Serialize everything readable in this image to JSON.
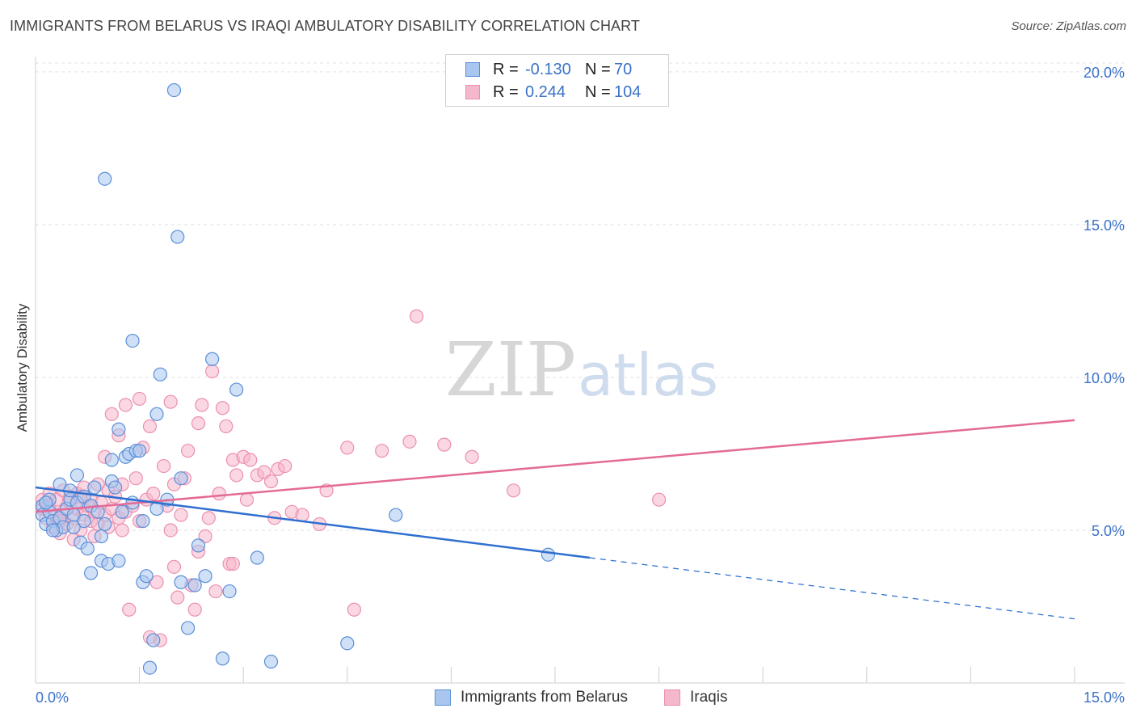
{
  "title": "IMMIGRANTS FROM BELARUS VS IRAQI AMBULATORY DISABILITY CORRELATION CHART",
  "source": "Source: ZipAtlas.com",
  "watermark": {
    "zip": "ZIP",
    "atlas": "atlas"
  },
  "legend": {
    "rows": [
      {
        "r_label": "R =",
        "r_value": "-0.130",
        "n_label": "N =",
        "n_value": "70"
      },
      {
        "r_label": "R =",
        "r_value": "0.244",
        "n_label": "N =",
        "n_value": "104"
      }
    ]
  },
  "bottom_legend": [
    "Immigrants from Belarus",
    "Iraqis"
  ],
  "colors": {
    "blue_fill": "#a9c6ef",
    "blue_stroke": "#5b8fd8",
    "blue_line": "#2e6fd0",
    "pink_fill": "#f5b7cb",
    "pink_stroke": "#ec8fae",
    "pink_line": "#e46a96",
    "tick_label": "#3a72c8",
    "grid": "#e2e2e2"
  },
  "chart_data": {
    "type": "scatter",
    "title": "IMMIGRANTS FROM BELARUS VS IRAQI AMBULATORY DISABILITY CORRELATION CHART",
    "xlabel": "",
    "ylabel": "Ambulatory Disability",
    "xlim": [
      0,
      15
    ],
    "ylim": [
      0,
      20.5
    ],
    "x_tick_labels": [
      "0.0%",
      "15.0%"
    ],
    "y_ticks": [
      5,
      10,
      15,
      20
    ],
    "y_tick_labels": [
      "5.0%",
      "10.0%",
      "15.0%",
      "20.0%"
    ],
    "series": [
      {
        "name": "Immigrants from Belarus",
        "r": -0.13,
        "n": 70,
        "trend": {
          "solid": [
            [
              0,
              6.4
            ],
            [
              8.0,
              4.1
            ]
          ],
          "dashed": [
            [
              8.0,
              4.1
            ],
            [
              15.0,
              2.1
            ]
          ]
        },
        "points": [
          [
            0.1,
            5.8
          ],
          [
            0.1,
            5.5
          ],
          [
            0.15,
            5.2
          ],
          [
            0.2,
            5.6
          ],
          [
            0.2,
            6.0
          ],
          [
            0.25,
            5.3
          ],
          [
            0.3,
            5.0
          ],
          [
            0.35,
            5.4
          ],
          [
            0.35,
            6.5
          ],
          [
            0.4,
            5.1
          ],
          [
            0.45,
            5.7
          ],
          [
            0.5,
            6.0
          ],
          [
            0.5,
            6.3
          ],
          [
            0.55,
            5.5
          ],
          [
            0.6,
            5.9
          ],
          [
            0.6,
            6.8
          ],
          [
            0.65,
            4.6
          ],
          [
            0.7,
            5.3
          ],
          [
            0.7,
            6.1
          ],
          [
            0.75,
            4.4
          ],
          [
            0.8,
            3.6
          ],
          [
            0.8,
            5.8
          ],
          [
            0.85,
            6.4
          ],
          [
            0.9,
            5.6
          ],
          [
            0.95,
            4.0
          ],
          [
            1.0,
            5.2
          ],
          [
            1.0,
            16.5
          ],
          [
            1.05,
            3.9
          ],
          [
            1.1,
            6.6
          ],
          [
            1.1,
            7.3
          ],
          [
            1.15,
            6.4
          ],
          [
            1.2,
            4.0
          ],
          [
            1.2,
            8.3
          ],
          [
            1.25,
            5.6
          ],
          [
            1.3,
            7.4
          ],
          [
            1.35,
            7.5
          ],
          [
            1.4,
            5.9
          ],
          [
            1.45,
            7.6
          ],
          [
            1.5,
            7.6
          ],
          [
            1.55,
            3.3
          ],
          [
            1.6,
            3.5
          ],
          [
            1.65,
            0.5
          ],
          [
            1.7,
            1.4
          ],
          [
            1.75,
            8.8
          ],
          [
            1.8,
            10.1
          ],
          [
            1.9,
            6.0
          ],
          [
            2.0,
            19.4
          ],
          [
            2.05,
            14.6
          ],
          [
            2.1,
            6.7
          ],
          [
            2.2,
            1.8
          ],
          [
            2.3,
            3.2
          ],
          [
            2.35,
            4.5
          ],
          [
            2.45,
            3.5
          ],
          [
            2.55,
            10.6
          ],
          [
            2.7,
            0.8
          ],
          [
            2.8,
            3.0
          ],
          [
            2.9,
            9.6
          ],
          [
            3.2,
            4.1
          ],
          [
            3.4,
            0.7
          ],
          [
            4.5,
            1.3
          ],
          [
            5.2,
            5.5
          ],
          [
            7.4,
            4.2
          ],
          [
            0.25,
            5.0
          ],
          [
            0.55,
            5.1
          ],
          [
            1.75,
            5.7
          ],
          [
            1.4,
            11.2
          ],
          [
            2.1,
            3.3
          ],
          [
            0.95,
            4.8
          ],
          [
            1.55,
            5.3
          ],
          [
            0.15,
            5.9
          ]
        ]
      },
      {
        "name": "Iraqis",
        "r": 0.244,
        "n": 104,
        "trend": {
          "solid": [
            [
              0,
              5.6
            ],
            [
              15.0,
              8.6
            ]
          ]
        },
        "points": [
          [
            0.1,
            5.7
          ],
          [
            0.1,
            6.0
          ],
          [
            0.15,
            5.4
          ],
          [
            0.2,
            5.8
          ],
          [
            0.2,
            6.2
          ],
          [
            0.25,
            5.1
          ],
          [
            0.3,
            5.5
          ],
          [
            0.3,
            6.0
          ],
          [
            0.35,
            4.9
          ],
          [
            0.4,
            5.6
          ],
          [
            0.4,
            6.3
          ],
          [
            0.45,
            5.2
          ],
          [
            0.5,
            5.9
          ],
          [
            0.5,
            6.1
          ],
          [
            0.55,
            5.4
          ],
          [
            0.6,
            5.7
          ],
          [
            0.6,
            6.2
          ],
          [
            0.65,
            5.0
          ],
          [
            0.7,
            5.5
          ],
          [
            0.7,
            6.4
          ],
          [
            0.75,
            5.8
          ],
          [
            0.8,
            5.3
          ],
          [
            0.8,
            6.0
          ],
          [
            0.85,
            5.6
          ],
          [
            0.9,
            6.5
          ],
          [
            0.9,
            5.2
          ],
          [
            0.95,
            5.9
          ],
          [
            1.0,
            5.5
          ],
          [
            1.0,
            7.4
          ],
          [
            1.05,
            6.3
          ],
          [
            1.1,
            5.7
          ],
          [
            1.1,
            8.8
          ],
          [
            1.15,
            6.1
          ],
          [
            1.2,
            5.4
          ],
          [
            1.2,
            8.1
          ],
          [
            1.25,
            6.5
          ],
          [
            1.3,
            9.1
          ],
          [
            1.3,
            5.6
          ],
          [
            1.35,
            2.4
          ],
          [
            1.4,
            5.8
          ],
          [
            1.45,
            6.7
          ],
          [
            1.5,
            5.3
          ],
          [
            1.5,
            9.3
          ],
          [
            1.55,
            7.7
          ],
          [
            1.6,
            6.0
          ],
          [
            1.65,
            8.4
          ],
          [
            1.7,
            6.2
          ],
          [
            1.75,
            3.3
          ],
          [
            1.8,
            1.4
          ],
          [
            1.85,
            7.1
          ],
          [
            1.9,
            5.8
          ],
          [
            1.95,
            9.2
          ],
          [
            2.0,
            3.8
          ],
          [
            2.0,
            6.5
          ],
          [
            2.05,
            2.8
          ],
          [
            2.1,
            5.5
          ],
          [
            2.15,
            6.7
          ],
          [
            2.2,
            7.6
          ],
          [
            2.25,
            3.2
          ],
          [
            2.3,
            2.4
          ],
          [
            2.35,
            8.5
          ],
          [
            2.4,
            9.1
          ],
          [
            2.45,
            4.8
          ],
          [
            2.5,
            5.4
          ],
          [
            2.55,
            10.2
          ],
          [
            2.6,
            3.0
          ],
          [
            2.65,
            6.2
          ],
          [
            2.7,
            9.0
          ],
          [
            2.75,
            8.4
          ],
          [
            2.8,
            3.9
          ],
          [
            2.85,
            7.3
          ],
          [
            2.9,
            6.8
          ],
          [
            3.0,
            7.4
          ],
          [
            3.1,
            7.3
          ],
          [
            3.2,
            6.8
          ],
          [
            3.3,
            6.9
          ],
          [
            3.4,
            6.6
          ],
          [
            3.5,
            7.0
          ],
          [
            3.6,
            7.1
          ],
          [
            3.7,
            5.6
          ],
          [
            3.85,
            5.5
          ],
          [
            4.1,
            5.2
          ],
          [
            4.2,
            6.3
          ],
          [
            4.5,
            7.7
          ],
          [
            4.6,
            2.4
          ],
          [
            5.0,
            7.6
          ],
          [
            5.4,
            7.9
          ],
          [
            5.5,
            12.0
          ],
          [
            5.9,
            7.8
          ],
          [
            6.3,
            7.4
          ],
          [
            6.9,
            6.3
          ],
          [
            9.0,
            6.0
          ],
          [
            0.55,
            4.7
          ],
          [
            0.85,
            4.8
          ],
          [
            1.95,
            5.0
          ],
          [
            2.35,
            4.3
          ],
          [
            1.65,
            1.5
          ],
          [
            3.05,
            6.0
          ],
          [
            0.35,
            5.3
          ],
          [
            1.25,
            5.0
          ],
          [
            2.85,
            3.9
          ],
          [
            0.65,
            6.1
          ],
          [
            1.05,
            5.1
          ],
          [
            3.45,
            5.4
          ]
        ]
      }
    ]
  }
}
